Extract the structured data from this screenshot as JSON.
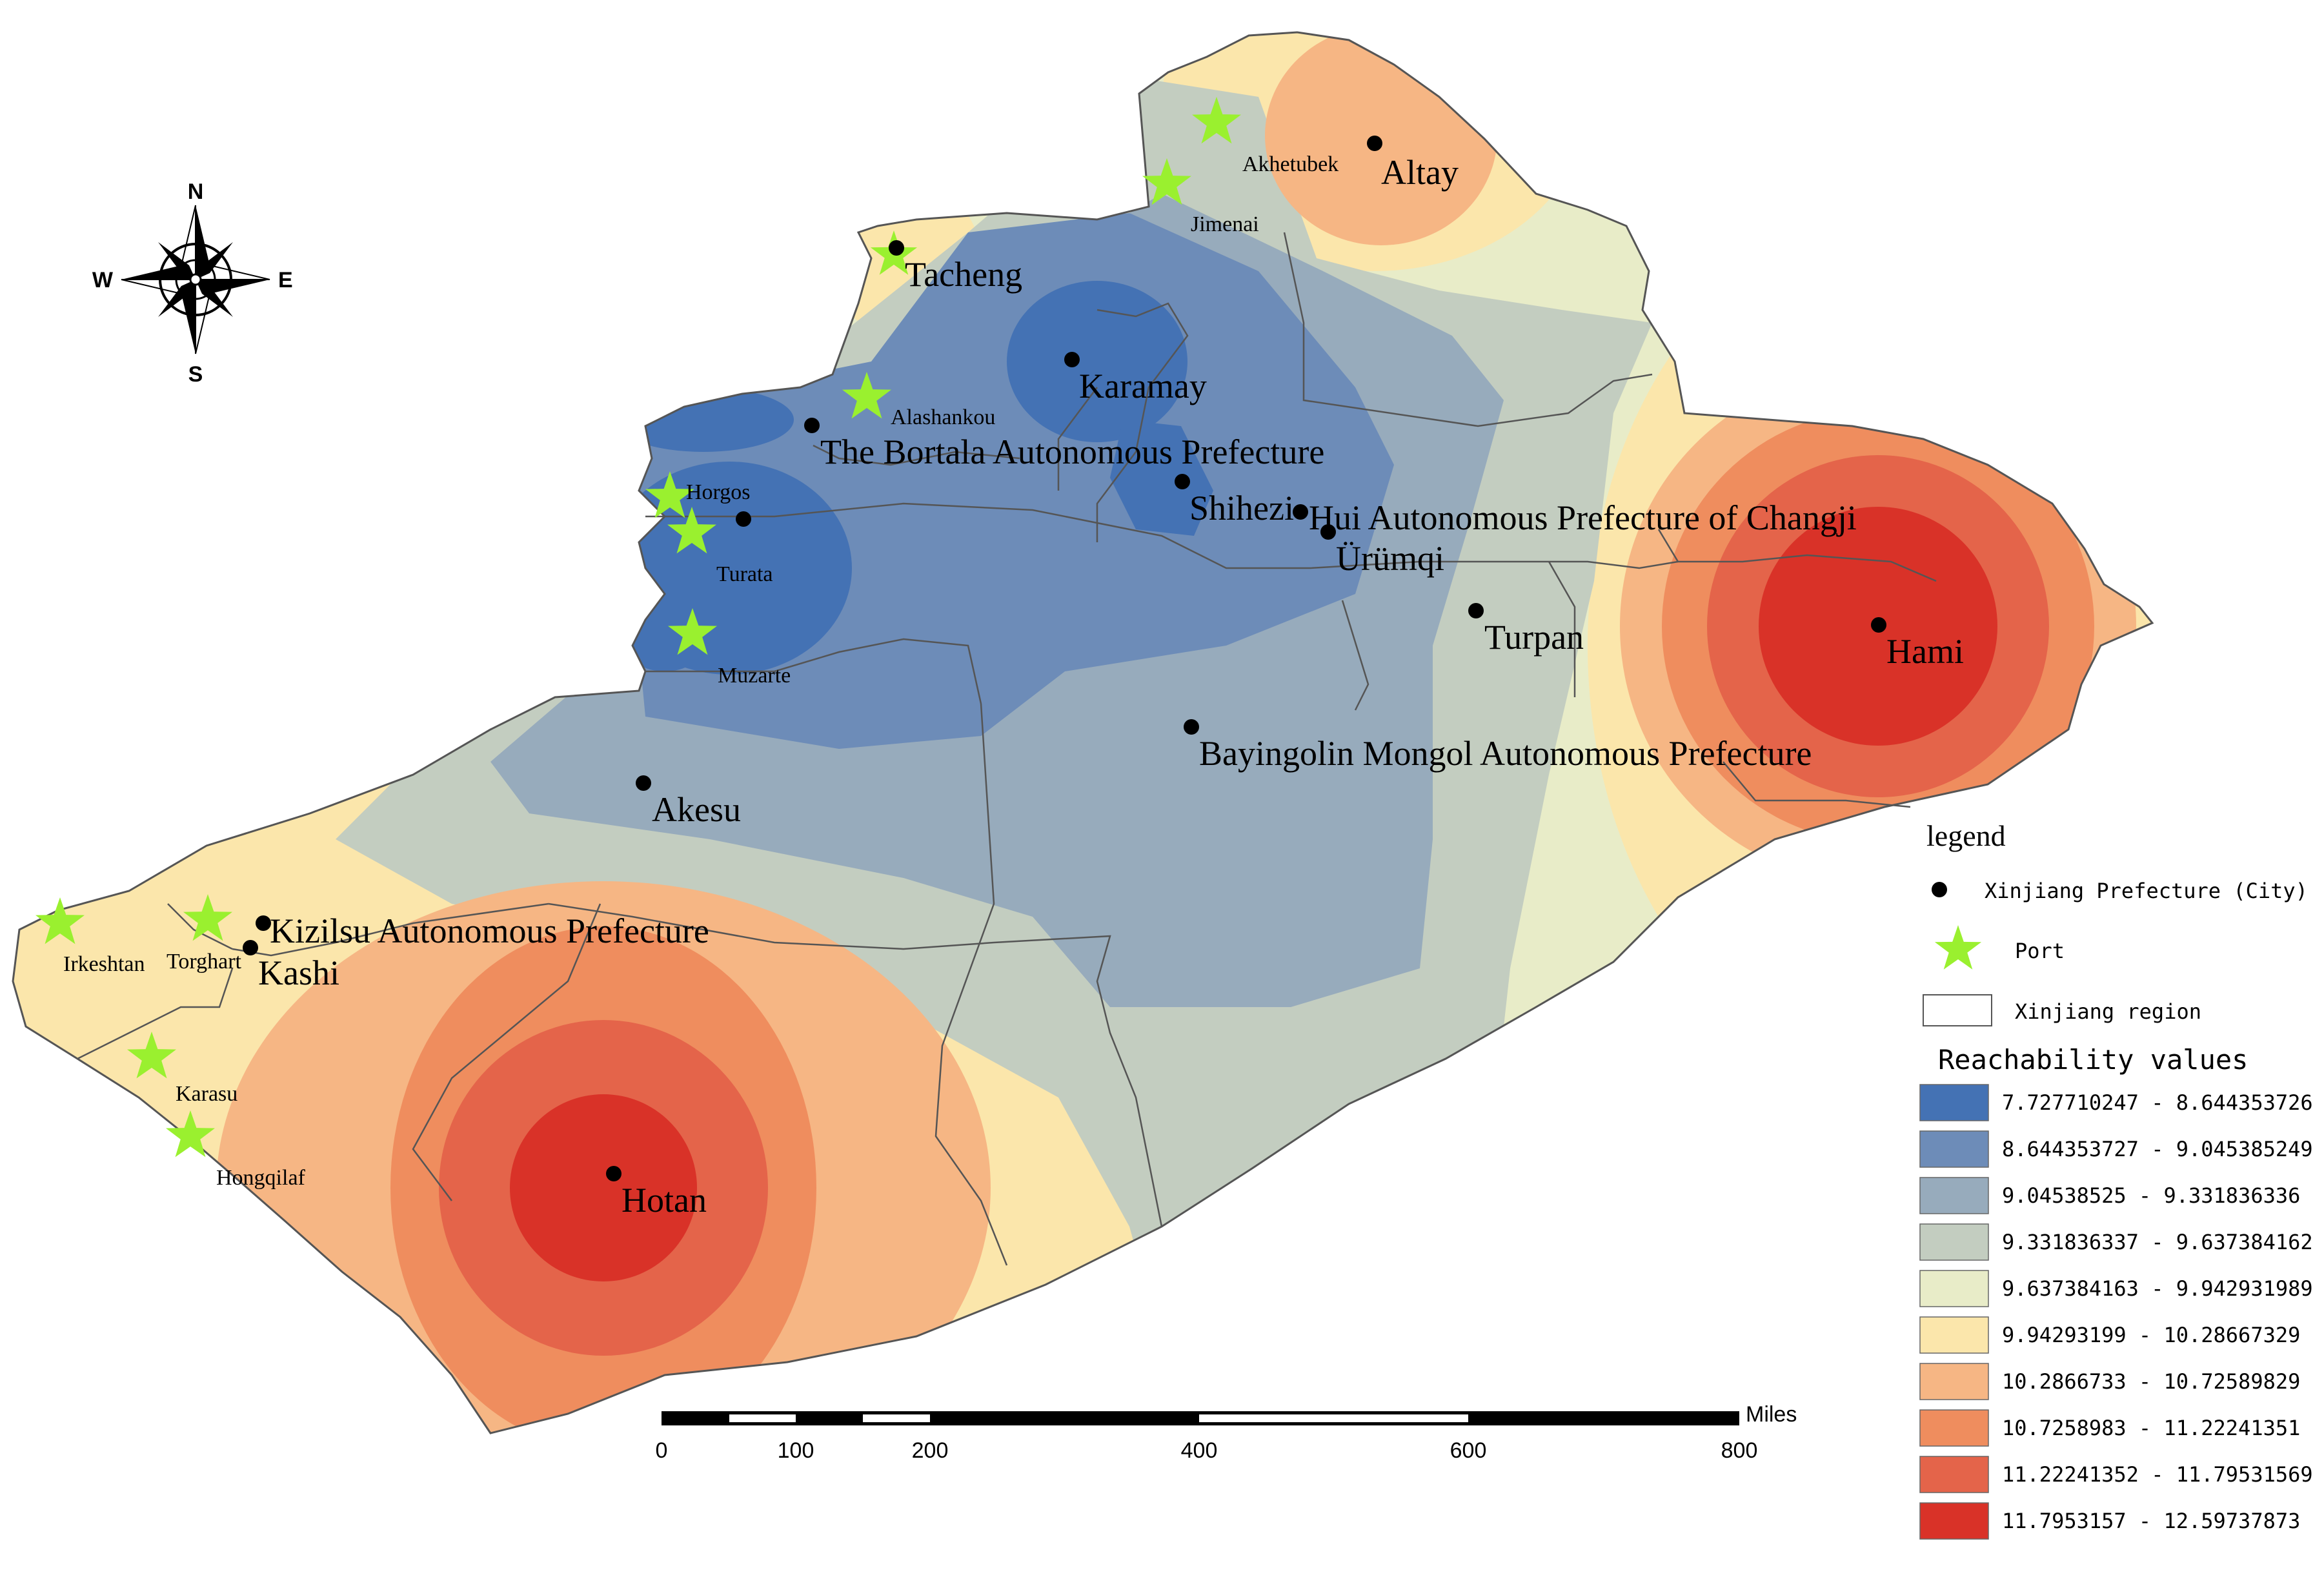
{
  "compass": {
    "n": "N",
    "s": "S",
    "e": "E",
    "w": "W"
  },
  "places": [
    {
      "id": "altay",
      "label": "Altay",
      "kind": "city"
    },
    {
      "id": "akhetubek",
      "label": "Akhetubek",
      "kind": "port"
    },
    {
      "id": "jimenai",
      "label": "Jimenai",
      "kind": "port"
    },
    {
      "id": "tacheng",
      "label": "Tacheng",
      "kind": "city"
    },
    {
      "id": "karamay",
      "label": "Karamay",
      "kind": "city"
    },
    {
      "id": "alashankou",
      "label": "Alashankou",
      "kind": "port"
    },
    {
      "id": "bortala",
      "label": "The Bortala Autonomous Prefecture",
      "kind": "city"
    },
    {
      "id": "horgos",
      "label": "Horgos",
      "kind": "port"
    },
    {
      "id": "turata",
      "label": "Turata",
      "kind": "port"
    },
    {
      "id": "shihezi",
      "label": "Shihezi",
      "kind": "city"
    },
    {
      "id": "changji",
      "label": "Hui Autonomous Prefecture of Changji",
      "kind": "city"
    },
    {
      "id": "urumqi",
      "label": "Ürümqi",
      "kind": "city"
    },
    {
      "id": "turpan",
      "label": "Turpan",
      "kind": "city"
    },
    {
      "id": "hami",
      "label": "Hami",
      "kind": "city"
    },
    {
      "id": "muzarte",
      "label": "Muzarte",
      "kind": "port"
    },
    {
      "id": "bayingolin",
      "label": "Bayingolin Mongol Autonomous Prefecture",
      "kind": "city"
    },
    {
      "id": "akesu",
      "label": "Akesu",
      "kind": "city"
    },
    {
      "id": "kizilsu",
      "label": "Kizilsu Autonomous Prefecture",
      "kind": "city"
    },
    {
      "id": "kashi",
      "label": "Kashi",
      "kind": "city"
    },
    {
      "id": "irkeshtan",
      "label": "Irkeshtan",
      "kind": "port"
    },
    {
      "id": "torghart",
      "label": "Torghart",
      "kind": "port"
    },
    {
      "id": "karasu",
      "label": "Karasu",
      "kind": "port"
    },
    {
      "id": "hongqilaf",
      "label": "Hongqilaf",
      "kind": "port"
    },
    {
      "id": "hotan",
      "label": "Hotan",
      "kind": "city"
    }
  ],
  "scale_bar": {
    "unit": "Miles",
    "ticks": [
      "0",
      "100",
      "200",
      "400",
      "600",
      "800"
    ]
  },
  "legend": {
    "title": "legend",
    "city_label": "Xinjiang Prefecture (City)",
    "port_label": "Port",
    "region_label": "Xinjiang region",
    "values_title": "Reachability values",
    "classes": [
      {
        "label": "7.727710247 - 8.644353726",
        "color": "#4472b4"
      },
      {
        "label": "8.644353727 - 9.045385249",
        "color": "#6d8cb8"
      },
      {
        "label": "9.04538525 - 9.331836336",
        "color": "#97abbc"
      },
      {
        "label": "9.331836337 - 9.637384162",
        "color": "#c3cdc0"
      },
      {
        "label": "9.637384163 - 9.942931989",
        "color": "#e8ecc8"
      },
      {
        "label": "9.94293199 - 10.28667329",
        "color": "#fbe6ab"
      },
      {
        "label": "10.2866733 - 10.72589829",
        "color": "#f6b684"
      },
      {
        "label": "10.7258983 - 11.22241351",
        "color": "#ef8d5e"
      },
      {
        "label": "11.22241352 - 11.79531569",
        "color": "#e4644a"
      },
      {
        "label": "11.7953157 - 12.59737873",
        "color": "#d93228"
      }
    ]
  }
}
